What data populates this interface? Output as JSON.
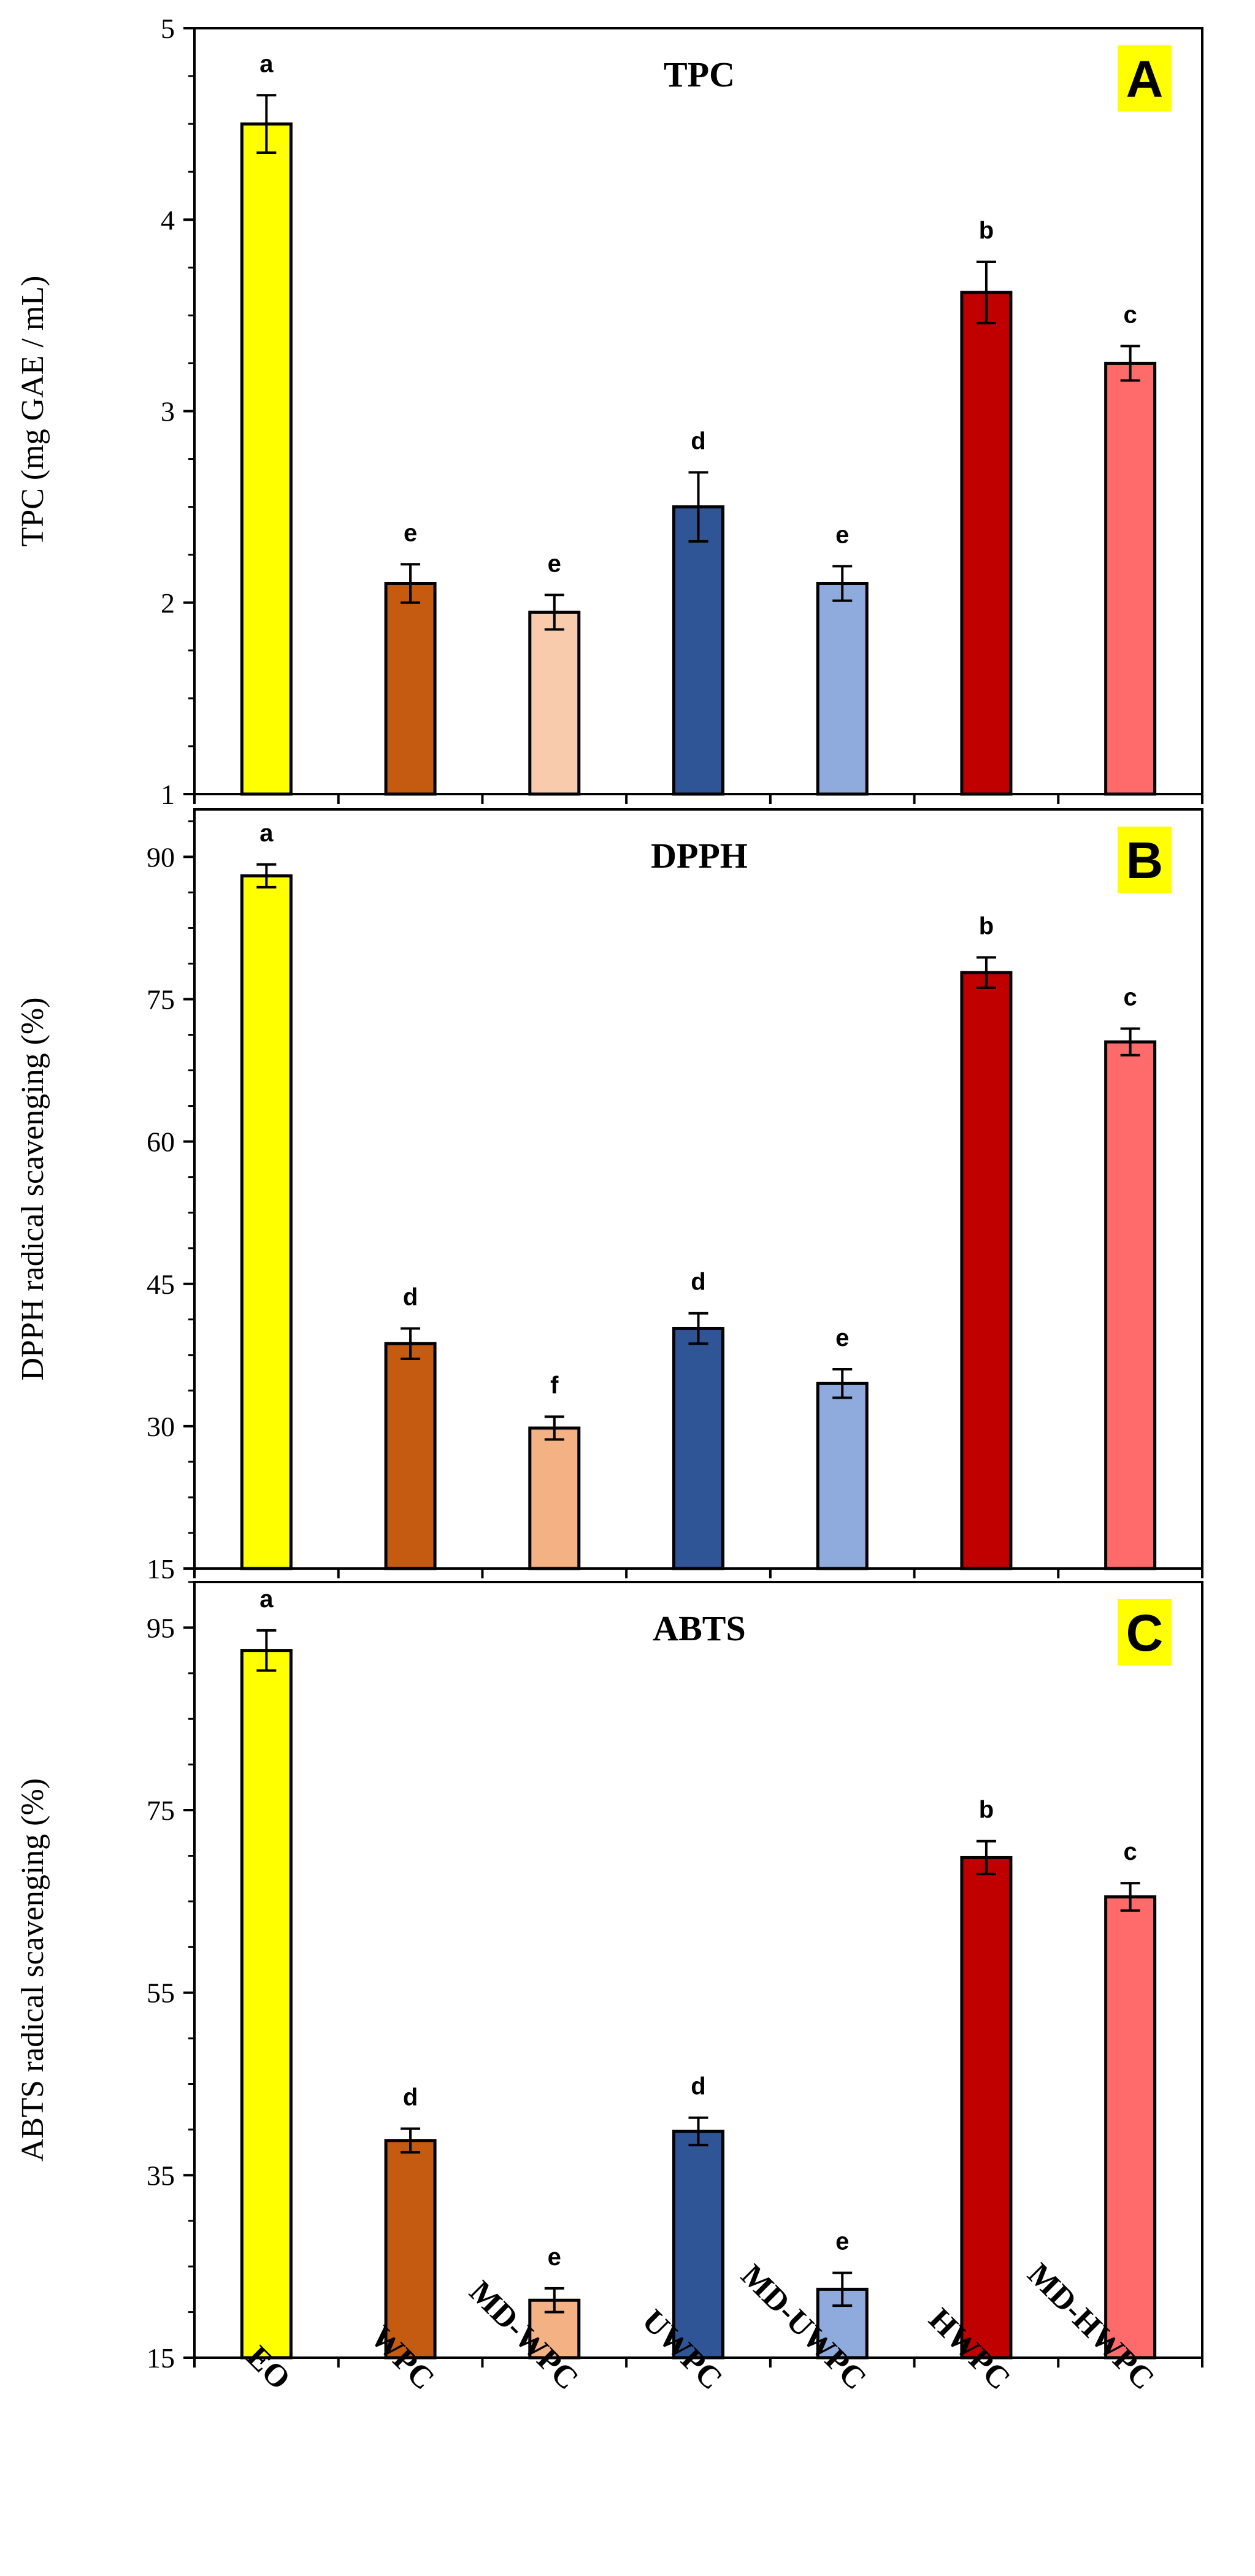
{
  "chart_data": [
    {
      "type": "bar",
      "panel": "A",
      "title": "TPC",
      "ylabel": "TPC (mg GAE / mL)",
      "ylim": [
        1,
        5
      ],
      "yticks": [
        1,
        2,
        3,
        4,
        5
      ],
      "categories": [
        "EO",
        "WPC",
        "MD-WPC",
        "UWPC",
        "MD-UWPC",
        "HWPC",
        "MD-HWPC"
      ],
      "values": [
        4.5,
        2.1,
        1.95,
        2.5,
        2.1,
        3.62,
        3.25
      ],
      "errors": [
        0.15,
        0.1,
        0.09,
        0.18,
        0.09,
        0.16,
        0.09
      ],
      "letters": [
        "a",
        "e",
        "e",
        "d",
        "e",
        "b",
        "c"
      ],
      "colors": [
        "#ffff00",
        "#c55a11",
        "#f8cbad",
        "#2f5597",
        "#8faadc",
        "#c00000",
        "#ff6b6b"
      ]
    },
    {
      "type": "bar",
      "panel": "B",
      "title": "DPPH",
      "ylabel": "DPPH radical scavenging (%)",
      "ylim": [
        15,
        95
      ],
      "yticks": [
        15,
        30,
        45,
        60,
        75,
        90
      ],
      "categories": [
        "EO",
        "WPC",
        "MD-WPC",
        "UWPC",
        "MD-UWPC",
        "HWPC",
        "MD-HWPC"
      ],
      "values": [
        88,
        38.7,
        29.8,
        40.3,
        34.5,
        77.8,
        70.5
      ],
      "errors": [
        1.2,
        1.6,
        1.2,
        1.6,
        1.5,
        1.6,
        1.4
      ],
      "letters": [
        "a",
        "d",
        "f",
        "d",
        "e",
        "b",
        "c"
      ],
      "colors": [
        "#ffff00",
        "#c55a11",
        "#f4b183",
        "#2f5597",
        "#8faadc",
        "#c00000",
        "#ff6b6b"
      ]
    },
    {
      "type": "bar",
      "panel": "C",
      "title": "ABTS",
      "ylabel": "ABTS radical scavenging (%)",
      "ylim": [
        15,
        100
      ],
      "yticks": [
        15,
        35,
        55,
        75,
        95
      ],
      "categories": [
        "EO",
        "WPC",
        "MD-WPC",
        "UWPC",
        "MD-UWPC",
        "HWPC",
        "MD-HWPC"
      ],
      "values": [
        92.5,
        38.8,
        21.3,
        39.8,
        22.5,
        69.8,
        65.5
      ],
      "errors": [
        2.2,
        1.3,
        1.3,
        1.5,
        1.8,
        1.8,
        1.5
      ],
      "letters": [
        "a",
        "d",
        "e",
        "d",
        "e",
        "b",
        "c"
      ],
      "colors": [
        "#ffff00",
        "#c55a11",
        "#f4b183",
        "#2f5597",
        "#8faadc",
        "#c00000",
        "#ff6b6b"
      ]
    }
  ]
}
